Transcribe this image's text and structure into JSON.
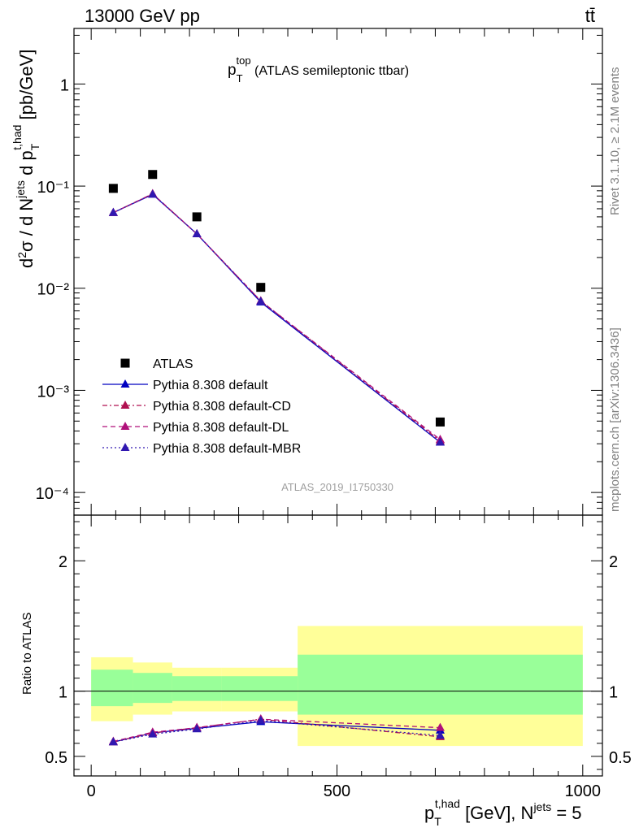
{
  "header": {
    "left": "13000 GeV pp",
    "right": "tt̄"
  },
  "side_text": {
    "rivet": "Rivet 3.1.10, ≥ 2.1M events",
    "mcplots": "mcplots.cern.ch [arXiv:1306.3436]"
  },
  "analysis_tag": "ATLAS_2019_I1750330",
  "title": {
    "var": "p",
    "sub": "T",
    "sup": "top",
    "rest": " (ATLAS semileptonic ttbar)"
  },
  "ylabel": {
    "text": "d²σ / d N^jets d p_T^{t,had} [pb/GeV]"
  },
  "ratio_ylabel": "Ratio to ATLAS",
  "xlabel": {
    "text": "p_T^{t,had} [GeV], N^jets = 5"
  },
  "colors": {
    "data": "#000000",
    "default": "#0000c0",
    "cd": "#b01050",
    "dl": "#b0107a",
    "mbr": "#3018b0",
    "band_outer": "#ffff99",
    "band_inner": "#99ff99"
  },
  "chart_data": [
    {
      "type": "scatter",
      "panel": "main",
      "yscale": "log",
      "xlim": [
        -35,
        1040
      ],
      "ylim": [
        6e-05,
        3.5
      ],
      "x": [
        45,
        125,
        215,
        345,
        710
      ],
      "x_bins": [
        [
          0,
          85
        ],
        [
          85,
          165
        ],
        [
          165,
          265
        ],
        [
          265,
          420
        ],
        [
          420,
          1000
        ]
      ],
      "y_tick_labels": [
        "10⁻⁴",
        "10⁻³",
        "10⁻²",
        "10⁻¹",
        "1"
      ],
      "series": [
        {
          "name": "ATLAS",
          "key": "data",
          "values": [
            0.095,
            0.13,
            0.05,
            0.0102,
            0.00049
          ]
        },
        {
          "name": "Pythia 8.308 default",
          "key": "default",
          "style": "solid",
          "values": [
            0.055,
            0.083,
            0.034,
            0.0073,
            0.00031
          ]
        },
        {
          "name": "Pythia 8.308 default-CD",
          "key": "cd",
          "style": "dashdot",
          "values": [
            0.055,
            0.084,
            0.034,
            0.0075,
            0.00032
          ]
        },
        {
          "name": "Pythia 8.308 default-DL",
          "key": "dl",
          "style": "dashed",
          "values": [
            0.055,
            0.084,
            0.034,
            0.0075,
            0.00033
          ]
        },
        {
          "name": "Pythia 8.308 default-MBR",
          "key": "mbr",
          "style": "dotted",
          "values": [
            0.055,
            0.083,
            0.034,
            0.0074,
            0.00031
          ]
        }
      ]
    },
    {
      "type": "line",
      "panel": "ratio",
      "xlim": [
        -35,
        1040
      ],
      "ylim": [
        0.35,
        2.35
      ],
      "y_ticks": [
        0.5,
        1,
        2
      ],
      "x_ticks": [
        0,
        500,
        1000
      ],
      "x": [
        45,
        125,
        215,
        345,
        710
      ],
      "bands": [
        {
          "x0": 0,
          "x1": 85,
          "inner": [
            0.885,
            1.165
          ],
          "outer": [
            0.77,
            1.26
          ]
        },
        {
          "x0": 85,
          "x1": 165,
          "inner": [
            0.91,
            1.14
          ],
          "outer": [
            0.82,
            1.22
          ]
        },
        {
          "x0": 165,
          "x1": 265,
          "inner": [
            0.925,
            1.115
          ],
          "outer": [
            0.845,
            1.18
          ]
        },
        {
          "x0": 265,
          "x1": 420,
          "inner": [
            0.925,
            1.115
          ],
          "outer": [
            0.845,
            1.18
          ]
        },
        {
          "x0": 420,
          "x1": 1000,
          "inner": [
            0.82,
            1.28
          ],
          "outer": [
            0.58,
            1.5
          ]
        }
      ],
      "series": [
        {
          "name": "Pythia 8.308 default",
          "key": "default",
          "style": "solid",
          "values": [
            0.61,
            0.68,
            0.715,
            0.765,
            0.7
          ]
        },
        {
          "name": "Pythia 8.308 default-CD",
          "key": "cd",
          "style": "dashdot",
          "values": [
            0.61,
            0.68,
            0.72,
            0.785,
            0.65
          ]
        },
        {
          "name": "Pythia 8.308 default-DL",
          "key": "dl",
          "style": "dashed",
          "values": [
            0.615,
            0.685,
            0.72,
            0.785,
            0.72
          ]
        },
        {
          "name": "Pythia 8.308 default-MBR",
          "key": "mbr",
          "style": "dotted",
          "values": [
            0.61,
            0.67,
            0.71,
            0.775,
            0.66
          ]
        }
      ]
    }
  ]
}
